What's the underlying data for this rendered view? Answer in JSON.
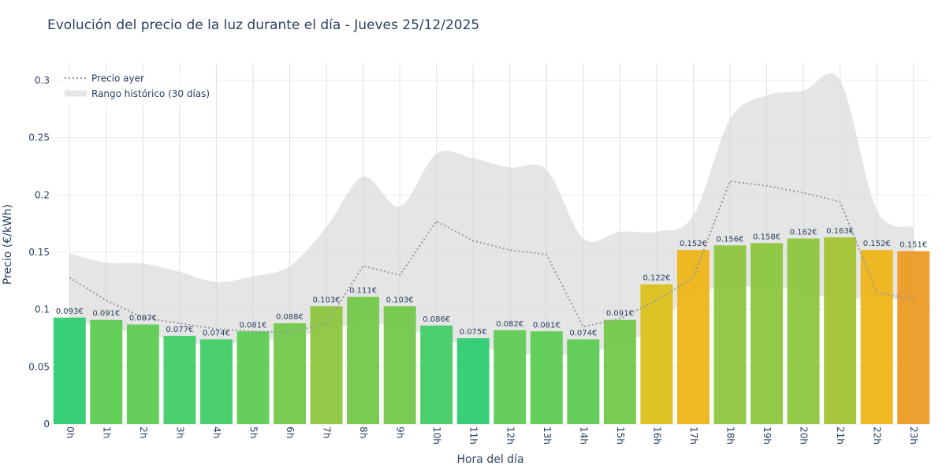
{
  "chart_data": {
    "type": "bar",
    "title": "Evolución del precio de la luz durante el día - Jueves 25/12/2025",
    "xlabel": "Hora del día",
    "ylabel": "Precio (€/kWh)",
    "ylim": [
      0,
      0.3
    ],
    "yticks": [
      "0",
      "0.05",
      "0.1",
      "0.15",
      "0.2",
      "0.25",
      "0.3"
    ],
    "grid": true,
    "legend_position": "top-left",
    "categories": [
      "0h",
      "1h",
      "2h",
      "3h",
      "4h",
      "5h",
      "6h",
      "7h",
      "8h",
      "9h",
      "10h",
      "11h",
      "12h",
      "13h",
      "14h",
      "15h",
      "16h",
      "17h",
      "18h",
      "19h",
      "20h",
      "21h",
      "22h",
      "23h"
    ],
    "series": [
      {
        "type": "bar",
        "values": [
          0.093,
          0.091,
          0.087,
          0.077,
          0.074,
          0.081,
          0.088,
          0.103,
          0.111,
          0.103,
          0.086,
          0.075,
          0.082,
          0.081,
          0.074,
          0.091,
          0.122,
          0.152,
          0.156,
          0.158,
          0.162,
          0.163,
          0.152,
          0.151
        ],
        "labels": [
          "0.093€",
          "0.091€",
          "0.087€",
          "0.077€",
          "0.074€",
          "0.081€",
          "0.088€",
          "0.103€",
          "0.111€",
          "0.103€",
          "0.086€",
          "0.075€",
          "0.082€",
          "0.081€",
          "0.074€",
          "0.091€",
          "0.122€",
          "0.152€",
          "0.156€",
          "0.158€",
          "0.162€",
          "0.163€",
          "0.152€",
          "0.151€"
        ],
        "colors": [
          "#2ecc71",
          "#5ecb52",
          "#5ecb52",
          "#43cc67",
          "#43cc67",
          "#5ecb52",
          "#72c84a",
          "#8cc63e",
          "#72c84a",
          "#72c84a",
          "#43cc67",
          "#2ecc71",
          "#5ecb52",
          "#5ecb52",
          "#5ecb52",
          "#72c84a",
          "#dcc11a",
          "#eeb519",
          "#8cc63e",
          "#8cc63e",
          "#8cc63e",
          "#a3c434",
          "#eeb519",
          "#ec9b24"
        ]
      },
      {
        "name": "Precio ayer",
        "type": "line",
        "style": "dotted",
        "color": "#999999",
        "values": [
          0.128,
          0.108,
          0.093,
          0.088,
          0.083,
          0.081,
          0.08,
          0.088,
          0.138,
          0.13,
          0.177,
          0.16,
          0.152,
          0.148,
          0.085,
          0.092,
          0.108,
          0.128,
          0.212,
          0.208,
          0.202,
          0.194,
          0.115,
          0.109
        ]
      },
      {
        "name": "Rango histórico (30 días)",
        "type": "area-range",
        "color": "#d3d3d3",
        "lower": [
          0.093,
          0.083,
          0.08,
          0.072,
          0.07,
          0.072,
          0.075,
          0.082,
          0.088,
          0.085,
          0.075,
          0.068,
          0.063,
          0.06,
          0.062,
          0.07,
          0.085,
          0.115,
          0.118,
          0.121,
          0.115,
          0.109,
          0.111,
          0.106
        ],
        "upper": [
          0.149,
          0.141,
          0.14,
          0.133,
          0.124,
          0.129,
          0.138,
          0.172,
          0.216,
          0.19,
          0.236,
          0.232,
          0.224,
          0.222,
          0.162,
          0.168,
          0.168,
          0.182,
          0.266,
          0.287,
          0.291,
          0.3,
          0.187,
          0.172
        ]
      }
    ]
  }
}
